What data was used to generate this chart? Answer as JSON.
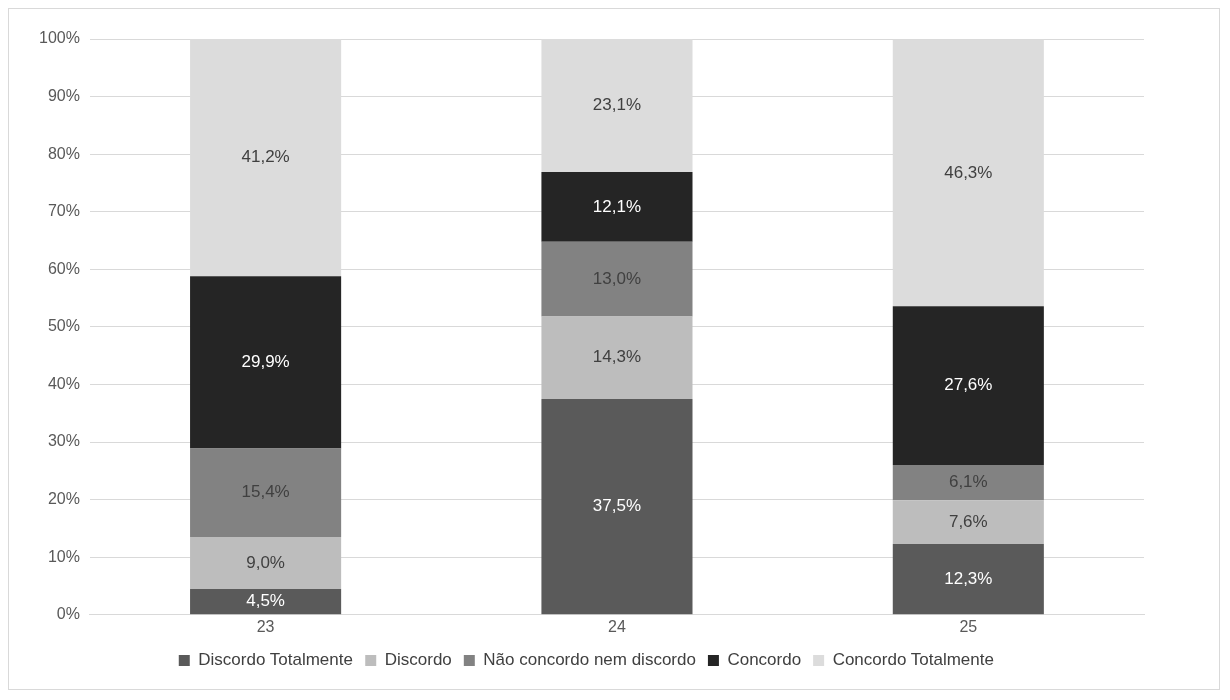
{
  "chart_data": {
    "type": "bar",
    "stacked": true,
    "categories": [
      "23",
      "24",
      "25"
    ],
    "series": [
      {
        "name": "Discordo Totalmente",
        "color": "#5a5a5a",
        "values": [
          4.5,
          37.5,
          12.3
        ],
        "value_labels": [
          "4,5%",
          "37,5%",
          "12,3%"
        ]
      },
      {
        "name": "Discordo",
        "color": "#bdbdbd",
        "values": [
          9.0,
          14.3,
          7.6
        ],
        "value_labels": [
          "9,0%",
          "14,3%",
          "7,6%"
        ]
      },
      {
        "name": "Não concordo nem discordo",
        "color": "#828282",
        "values": [
          15.4,
          13.0,
          6.1
        ],
        "value_labels": [
          "15,4%",
          "13,0%",
          "6,1%"
        ]
      },
      {
        "name": "Concordo",
        "color": "#252525",
        "values": [
          29.9,
          12.1,
          27.6
        ],
        "value_labels": [
          "29,9%",
          "12,1%",
          "27,6%"
        ]
      },
      {
        "name": "Concordo Totalmente",
        "color": "#dcdcdc",
        "values": [
          41.2,
          23.1,
          46.3
        ],
        "value_labels": [
          "41,2%",
          "23,1%",
          "46,3%"
        ]
      }
    ],
    "ylim": [
      0,
      100
    ],
    "yticks": [
      {
        "value": 0,
        "label": "0%"
      },
      {
        "value": 10,
        "label": "10%"
      },
      {
        "value": 20,
        "label": "20%"
      },
      {
        "value": 30,
        "label": "30%"
      },
      {
        "value": 40,
        "label": "40%"
      },
      {
        "value": 50,
        "label": "50%"
      },
      {
        "value": 60,
        "label": "60%"
      },
      {
        "value": 70,
        "label": "70%"
      },
      {
        "value": 80,
        "label": "80%"
      },
      {
        "value": 90,
        "label": "90%"
      },
      {
        "value": 100,
        "label": "100%"
      }
    ],
    "grid": "y",
    "legend": "bottom"
  }
}
